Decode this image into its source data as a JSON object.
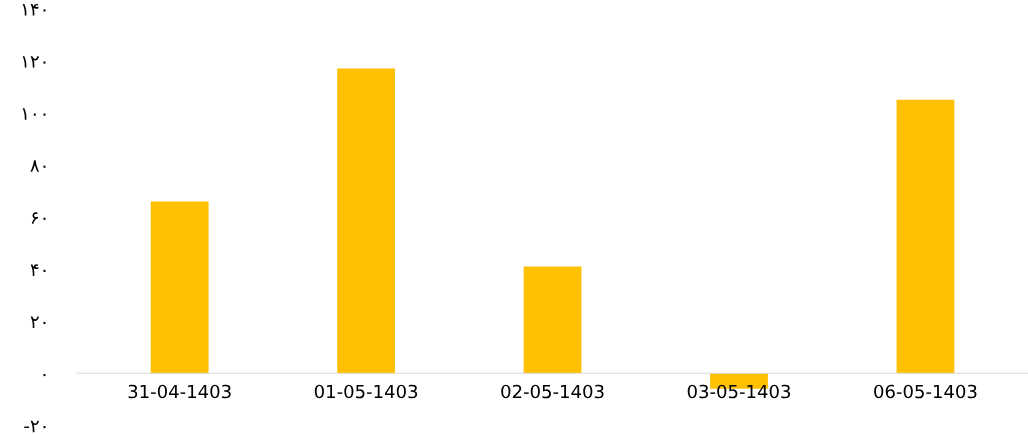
{
  "chart_data": {
    "type": "bar",
    "categories": [
      "31-04-1403",
      "01-05-1403",
      "02-05-1403",
      "03-05-1403",
      "06-05-1403"
    ],
    "values": [
      66,
      117,
      41,
      -6,
      105
    ],
    "color": "#ffc000",
    "ylim": [
      -20,
      140
    ],
    "yticks": [
      {
        "value": -20,
        "label": "-۲۰"
      },
      {
        "value": 0,
        "label": "۰"
      },
      {
        "value": 20,
        "label": "۲۰"
      },
      {
        "value": 40,
        "label": "۴۰"
      },
      {
        "value": 60,
        "label": "۶۰"
      },
      {
        "value": 80,
        "label": "۸۰"
      },
      {
        "value": 100,
        "label": "۱۰۰"
      },
      {
        "value": 120,
        "label": "۱۲۰"
      },
      {
        "value": 140,
        "label": "۱۴۰"
      }
    ],
    "grid": false
  }
}
